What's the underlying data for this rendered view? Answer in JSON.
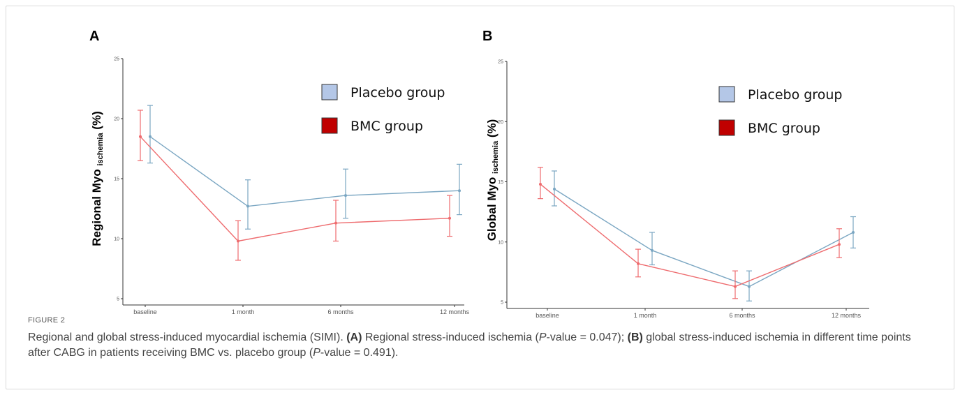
{
  "figure": {
    "label": "FIGURE 2",
    "caption_parts": [
      {
        "t": "Regional and global stress-induced myocardial ischemia (SIMI). ",
        "s": "n"
      },
      {
        "t": "(A)",
        "s": "b"
      },
      {
        "t": " Regional stress-induced ischemia (",
        "s": "n"
      },
      {
        "t": "P",
        "s": "i"
      },
      {
        "t": "-value = 0.047); ",
        "s": "n"
      },
      {
        "t": "(B)",
        "s": "b"
      },
      {
        "t": " global stress-induced ischemia in different time points after CABG in patients receiving BMC vs. placebo group (",
        "s": "n"
      },
      {
        "t": "P",
        "s": "i"
      },
      {
        "t": "-value = 0.491).",
        "s": "n"
      }
    ]
  },
  "colors": {
    "placebo": "#7aa6c2",
    "bmc": "#ee6b6e",
    "placebo_legend": "#b4c7e7",
    "bmc_legend": "#c00000"
  },
  "chart_data": [
    {
      "panel": "A",
      "type": "line",
      "ylabel_main": "Regional Myo",
      "ylabel_sub": "ischemia",
      "ylabel_unit": "(%)",
      "ylim": [
        5,
        25
      ],
      "yticks": [
        5,
        10,
        15,
        20,
        25
      ],
      "categories": [
        "baseline",
        "1 month",
        "6 months",
        "12 months"
      ],
      "series": [
        {
          "name": "Placebo group",
          "color_key": "placebo",
          "values": [
            18.5,
            12.7,
            13.6,
            14.0
          ],
          "err_low": [
            16.3,
            10.8,
            11.7,
            12.0
          ],
          "err_high": [
            21.1,
            14.9,
            15.8,
            16.2
          ]
        },
        {
          "name": "BMC group",
          "color_key": "bmc",
          "values": [
            18.5,
            9.8,
            11.3,
            11.7
          ],
          "err_low": [
            16.5,
            8.2,
            9.8,
            10.2
          ],
          "err_high": [
            20.7,
            11.5,
            13.2,
            13.6
          ]
        }
      ],
      "legend": [
        "Placebo group",
        "BMC group"
      ]
    },
    {
      "panel": "B",
      "type": "line",
      "ylabel_main": "Global Myo",
      "ylabel_sub": "ischemia",
      "ylabel_unit": "(%)",
      "ylim": [
        5,
        25
      ],
      "yticks": [
        5,
        10,
        15,
        20,
        25
      ],
      "categories": [
        "baseline",
        "1 month",
        "6 months",
        "12 months"
      ],
      "series": [
        {
          "name": "Placebo group",
          "color_key": "placebo",
          "values": [
            14.4,
            9.3,
            6.3,
            10.8
          ],
          "err_low": [
            13.0,
            8.1,
            5.1,
            9.5
          ],
          "err_high": [
            15.9,
            10.8,
            7.6,
            12.1
          ]
        },
        {
          "name": "BMC group",
          "color_key": "bmc",
          "values": [
            14.8,
            8.2,
            6.3,
            9.8
          ],
          "err_low": [
            13.6,
            7.1,
            5.3,
            8.7
          ],
          "err_high": [
            16.2,
            9.4,
            7.6,
            11.1
          ]
        }
      ],
      "legend": [
        "Placebo group",
        "BMC group"
      ]
    }
  ]
}
